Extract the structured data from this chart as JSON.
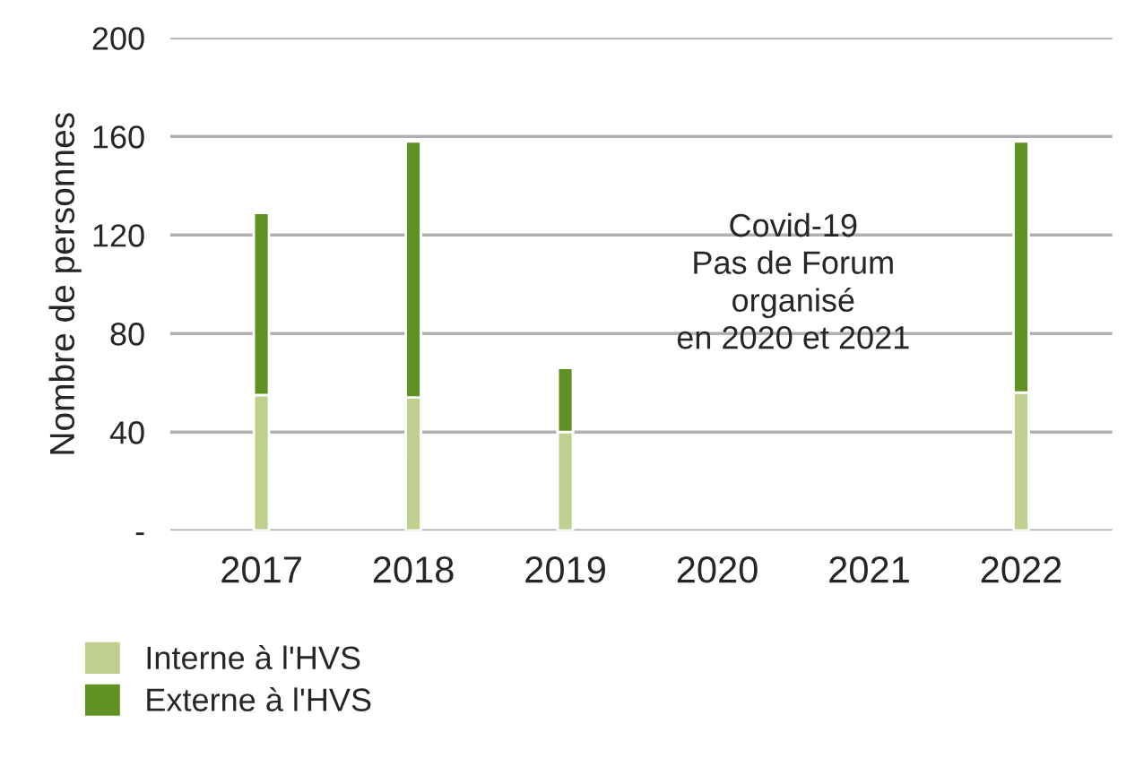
{
  "chart_data": {
    "type": "bar",
    "stacked": true,
    "ylabel": "Nombre de personnes",
    "categories": [
      "2017",
      "2018",
      "2019",
      "2020",
      "2021",
      "2022"
    ],
    "series": [
      {
        "name": "Interne à l'HVS",
        "color": "#bfcf8d",
        "values": [
          55,
          54,
          40,
          null,
          null,
          56
        ]
      },
      {
        "name": "Externe à l'HVS",
        "color": "#5f9222",
        "values": [
          74,
          104,
          26,
          null,
          null,
          102
        ]
      }
    ],
    "ylim": [
      0,
      200
    ],
    "yticks": [
      {
        "value": 0,
        "label": "-"
      },
      40,
      80,
      120,
      160,
      200
    ],
    "grid": "y",
    "legend": "bottom left",
    "annotations": [
      "Covid-19\nPas de Forum\norganisé\nen 2020 et 2021"
    ]
  }
}
